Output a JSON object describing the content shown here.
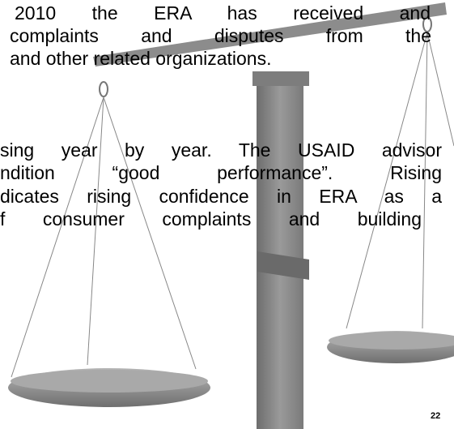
{
  "paragraphs": [
    {
      "lines": [
        "2010 the ERA has received and",
        "complaints and disputes from the",
        "and other related organizations."
      ]
    },
    {
      "lines": [
        "sing year by year. The USAID advisor",
        "ndition “good performance”. Rising",
        "dicates rising confidence in ERA as a",
        "f consumer complaints and building"
      ]
    }
  ],
  "page_number": "22"
}
